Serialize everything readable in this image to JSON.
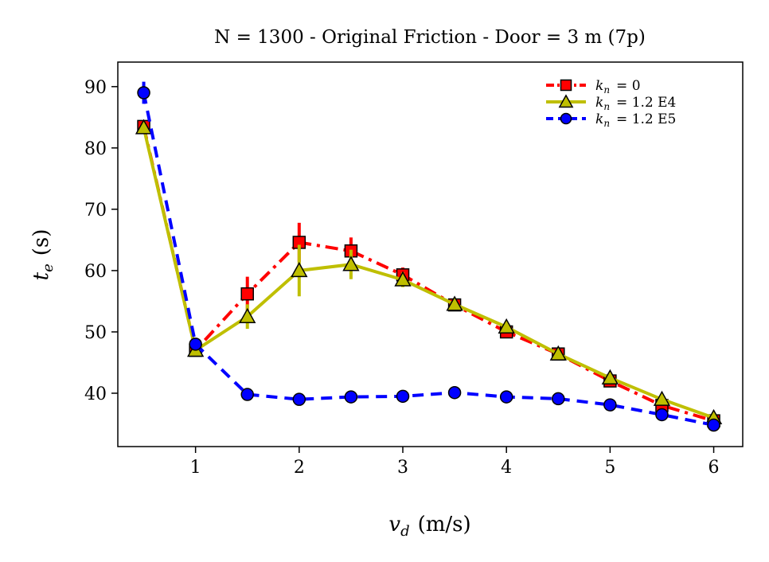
{
  "chart_data": {
    "type": "line",
    "title": "N = 1300 - Original Friction - Door = 3 m (7p)",
    "xlabel": "v",
    "xlabel_sub": "d",
    "xlabel_unit": "(m/s)",
    "ylabel": "t",
    "ylabel_sub": "e",
    "ylabel_unit": "(s)",
    "xlim": [
      0.25,
      6.28
    ],
    "ylim": [
      31.3,
      94.0
    ],
    "xticks": [
      1,
      2,
      3,
      4,
      5,
      6
    ],
    "yticks": [
      40,
      50,
      60,
      70,
      80,
      90
    ],
    "grid": false,
    "legend_position": "top-right",
    "x": [
      0.5,
      1.0,
      1.5,
      2.0,
      2.5,
      3.0,
      3.5,
      4.0,
      4.5,
      5.0,
      5.5,
      6.0
    ],
    "series": [
      {
        "name": "k_n = 0",
        "legend_main": "k",
        "legend_sub": "n",
        "legend_rest": "= 0",
        "color": "#ff0000",
        "linestyle": "dashdot",
        "marker": "square",
        "values": [
          83.5,
          47.0,
          56.2,
          64.6,
          63.2,
          59.3,
          54.4,
          50.0,
          46.4,
          42.0,
          38.0,
          35.5
        ],
        "errors": [
          1.0,
          0.8,
          2.8,
          3.2,
          2.2,
          1.2,
          1.0,
          0.8,
          0.6,
          0.6,
          0.5,
          0.4
        ]
      },
      {
        "name": "k_n = 1.2 E4",
        "legend_main": "k",
        "legend_sub": "n",
        "legend_rest": "= 1.2 E4",
        "color": "#bfbf00",
        "linestyle": "solid",
        "marker": "triangle",
        "values": [
          83.3,
          47.0,
          52.5,
          60.0,
          61.0,
          58.5,
          54.5,
          50.8,
          46.4,
          42.5,
          39.0,
          36.0
        ],
        "errors": [
          1.0,
          0.8,
          2.0,
          4.2,
          2.4,
          1.2,
          1.0,
          0.8,
          0.6,
          0.6,
          0.5,
          0.4
        ]
      },
      {
        "name": "k_n = 1.2 E5",
        "legend_main": "k",
        "legend_sub": "n",
        "legend_rest": "= 1.2 E5",
        "color": "#0000ff",
        "linestyle": "dashed",
        "marker": "circle",
        "values": [
          89.0,
          48.0,
          39.8,
          39.0,
          39.4,
          39.5,
          40.1,
          39.4,
          39.1,
          38.1,
          36.5,
          34.8
        ],
        "errors": [
          1.8,
          0.8,
          0.6,
          0.5,
          0.5,
          0.5,
          0.6,
          0.5,
          0.5,
          0.5,
          0.5,
          0.5
        ]
      }
    ]
  }
}
